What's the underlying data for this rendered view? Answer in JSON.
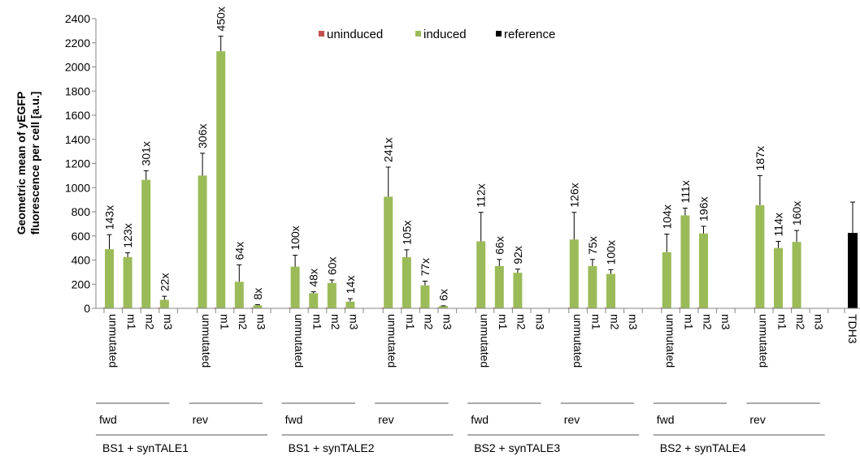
{
  "chart_data": {
    "type": "bar",
    "ylabel": "Geometric mean of yEGFP fluorescence per cell [a.u.]",
    "ylabel_lines": [
      "Geometric mean of yEGFP",
      "fluorescence per cell [a.u.]"
    ],
    "ylim": [
      0,
      2400
    ],
    "yticks": [
      0,
      200,
      400,
      600,
      800,
      1000,
      1200,
      1400,
      1600,
      1800,
      2000,
      2200,
      2400
    ],
    "grid": false,
    "legend_position": "top",
    "legend": [
      {
        "name": "uninduced",
        "color": "#c0504d"
      },
      {
        "name": "induced",
        "color": "#9bbb59"
      },
      {
        "name": "reference",
        "color": "#000000"
      }
    ],
    "groups": [
      {
        "label": "BS1 + synTALE1",
        "subgroups": [
          {
            "label": "fwd",
            "bars": [
              {
                "category": "unmutated",
                "uninduced": 3,
                "induced": 490,
                "error": 120,
                "fold": "143x"
              },
              {
                "category": "m1",
                "uninduced": 3,
                "induced": 425,
                "error": 35,
                "fold": "123x"
              },
              {
                "category": "m2",
                "uninduced": 4,
                "induced": 1065,
                "error": 75,
                "fold": "301x"
              },
              {
                "category": "m3",
                "uninduced": 3,
                "induced": 70,
                "error": 30,
                "fold": "22x"
              }
            ]
          },
          {
            "label": "rev",
            "bars": [
              {
                "category": "unmutated",
                "uninduced": 4,
                "induced": 1100,
                "error": 185,
                "fold": "306x"
              },
              {
                "category": "m1",
                "uninduced": 5,
                "induced": 2130,
                "error": 125,
                "fold": "450x"
              },
              {
                "category": "m2",
                "uninduced": 3,
                "induced": 220,
                "error": 140,
                "fold": "64x"
              },
              {
                "category": "m3",
                "uninduced": 3,
                "induced": 25,
                "error": 5,
                "fold": "8x"
              }
            ]
          }
        ]
      },
      {
        "label": "BS1 + synTALE2",
        "subgroups": [
          {
            "label": "fwd",
            "bars": [
              {
                "category": "unmutated",
                "uninduced": 3,
                "induced": 345,
                "error": 95,
                "fold": "100x"
              },
              {
                "category": "m1",
                "uninduced": 3,
                "induced": 125,
                "error": 12,
                "fold": "48x"
              },
              {
                "category": "m2",
                "uninduced": 3,
                "induced": 210,
                "error": 25,
                "fold": "60x"
              },
              {
                "category": "m3",
                "uninduced": 3,
                "induced": 55,
                "error": 25,
                "fold": "14x"
              }
            ]
          },
          {
            "label": "rev",
            "bars": [
              {
                "category": "unmutated",
                "uninduced": 4,
                "induced": 925,
                "error": 245,
                "fold": "241x"
              },
              {
                "category": "m1",
                "uninduced": 4,
                "induced": 425,
                "error": 60,
                "fold": "105x"
              },
              {
                "category": "m2",
                "uninduced": 3,
                "induced": 190,
                "error": 35,
                "fold": "77x"
              },
              {
                "category": "m3",
                "uninduced": 3,
                "induced": 18,
                "error": 3,
                "fold": "6x"
              }
            ]
          }
        ]
      },
      {
        "label": "BS2 + synTALE3",
        "subgroups": [
          {
            "label": "fwd",
            "bars": [
              {
                "category": "unmutated",
                "uninduced": 5,
                "induced": 555,
                "error": 240,
                "fold": "112x"
              },
              {
                "category": "m1",
                "uninduced": 5,
                "induced": 350,
                "error": 55,
                "fold": "66x"
              },
              {
                "category": "m2",
                "uninduced": 4,
                "induced": 295,
                "error": 30,
                "fold": "92x"
              },
              {
                "category": "m3",
                "uninduced": 0,
                "induced": 0,
                "error": 0,
                "fold": ""
              }
            ]
          },
          {
            "label": "rev",
            "bars": [
              {
                "category": "unmutated",
                "uninduced": 4,
                "induced": 570,
                "error": 225,
                "fold": "126x"
              },
              {
                "category": "m1",
                "uninduced": 5,
                "induced": 350,
                "error": 55,
                "fold": "75x"
              },
              {
                "category": "m2",
                "uninduced": 3,
                "induced": 285,
                "error": 35,
                "fold": "100x"
              },
              {
                "category": "m3",
                "uninduced": 0,
                "induced": 0,
                "error": 0,
                "fold": ""
              }
            ]
          }
        ]
      },
      {
        "label": "BS2 + synTALE4",
        "subgroups": [
          {
            "label": "fwd",
            "bars": [
              {
                "category": "unmutated",
                "uninduced": 4,
                "induced": 465,
                "error": 150,
                "fold": "104x"
              },
              {
                "category": "m1",
                "uninduced": 7,
                "induced": 770,
                "error": 60,
                "fold": "111x"
              },
              {
                "category": "m2",
                "uninduced": 3,
                "induced": 620,
                "error": 60,
                "fold": "196x"
              },
              {
                "category": "m3",
                "uninduced": 0,
                "induced": 0,
                "error": 0,
                "fold": ""
              }
            ]
          },
          {
            "label": "rev",
            "bars": [
              {
                "category": "unmutated",
                "uninduced": 5,
                "induced": 855,
                "error": 245,
                "fold": "187x"
              },
              {
                "category": "m1",
                "uninduced": 4,
                "induced": 500,
                "error": 55,
                "fold": "114x"
              },
              {
                "category": "m2",
                "uninduced": 3,
                "induced": 550,
                "error": 95,
                "fold": "160x"
              },
              {
                "category": "m3",
                "uninduced": 0,
                "induced": 0,
                "error": 0,
                "fold": ""
              }
            ]
          }
        ]
      }
    ],
    "reference": {
      "category": "TDH3",
      "value": 625,
      "error": 255
    }
  }
}
